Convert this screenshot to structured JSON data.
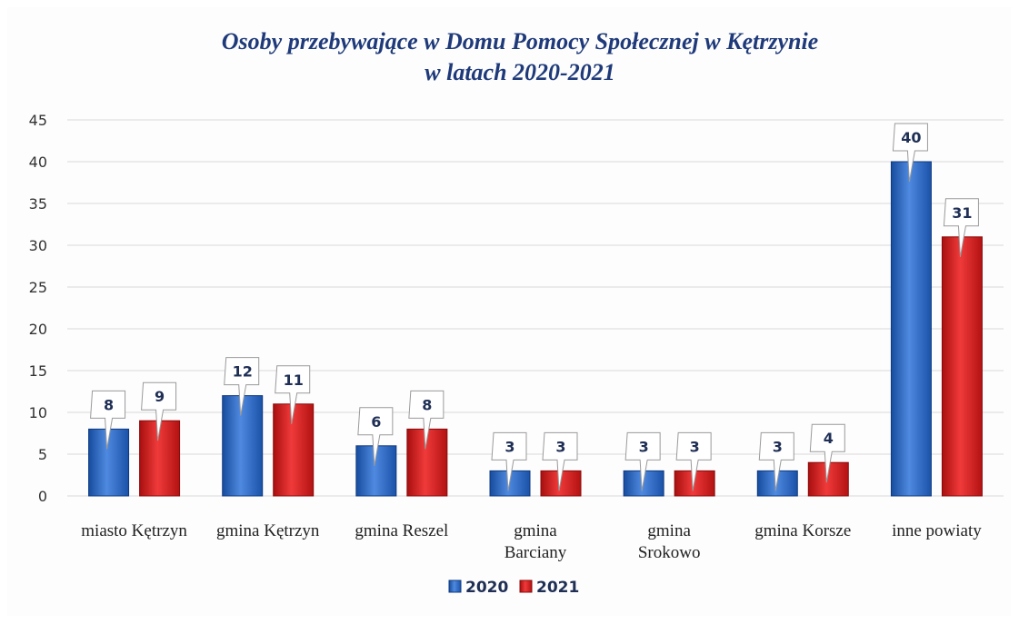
{
  "chart_data": {
    "type": "bar",
    "title": "Osoby przebywające w Domu Pomocy Społecznej w Kętrzynie w latach 2020-2021",
    "title_lines": [
      "Osoby przebywające w Domu Pomocy Społecznej w Kętrzynie",
      "w latach 2020-2021"
    ],
    "categories": [
      [
        "miasto Kętrzyn"
      ],
      [
        "gmina Kętrzyn"
      ],
      [
        "gmina Reszel"
      ],
      [
        "gmina",
        "Barciany"
      ],
      [
        "gmina",
        "Srokowo"
      ],
      [
        "gmina Korsze"
      ],
      [
        "inne powiaty"
      ]
    ],
    "series": [
      {
        "name": "2020",
        "values": [
          8,
          12,
          6,
          3,
          3,
          3,
          40
        ],
        "color": "#2a62c2"
      },
      {
        "name": "2021",
        "values": [
          9,
          11,
          8,
          3,
          3,
          4,
          31
        ],
        "color": "#d61d1d"
      }
    ],
    "ylim": [
      0,
      45
    ],
    "yticks": [
      0,
      5,
      10,
      15,
      20,
      25,
      30,
      35,
      40,
      45
    ],
    "xlabel": "",
    "ylabel": "",
    "grid": true,
    "legend_position": "bottom-center",
    "data_labels": true
  }
}
